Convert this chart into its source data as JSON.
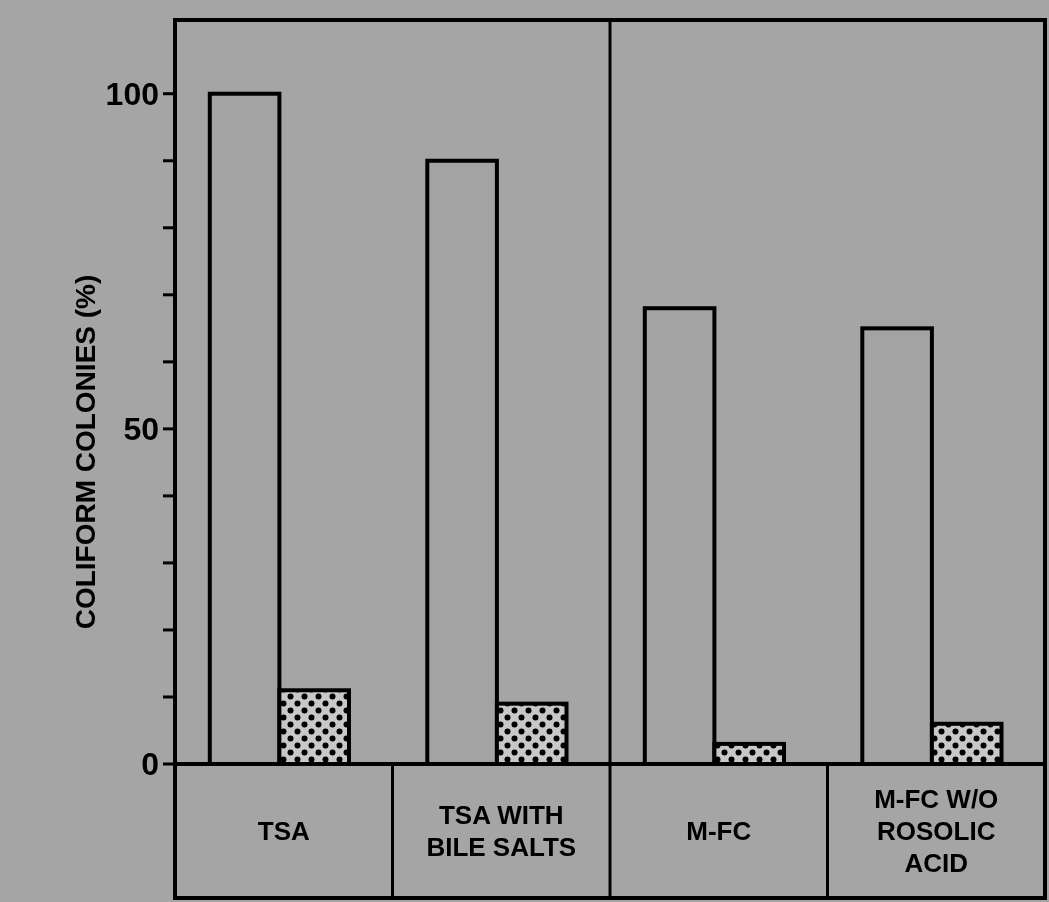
{
  "chart_data": {
    "type": "bar",
    "ylabel": "COLIFORM COLONIES (%)",
    "categories": [
      "TSA",
      "TSA WITH BILE SALTS",
      "M-FC",
      "M-FC W/O ROSOLIC ACID"
    ],
    "series": [
      {
        "color": "#a3a3a3",
        "values": [
          100,
          90,
          68,
          65
        ]
      },
      {
        "color": "#000000",
        "values": [
          11,
          9,
          3,
          6
        ]
      }
    ],
    "ylim": [
      0,
      111
    ],
    "yticks": [
      0,
      {
        "value": 10,
        "label": null
      },
      {
        "value": 20,
        "label": null
      },
      {
        "value": 30,
        "label": null
      },
      {
        "value": 40,
        "label": null
      },
      50,
      {
        "value": 60,
        "label": null
      },
      {
        "value": 70,
        "label": null
      },
      {
        "value": 80,
        "label": null
      },
      {
        "value": 90,
        "label": null
      },
      100
    ],
    "grid": false
  }
}
